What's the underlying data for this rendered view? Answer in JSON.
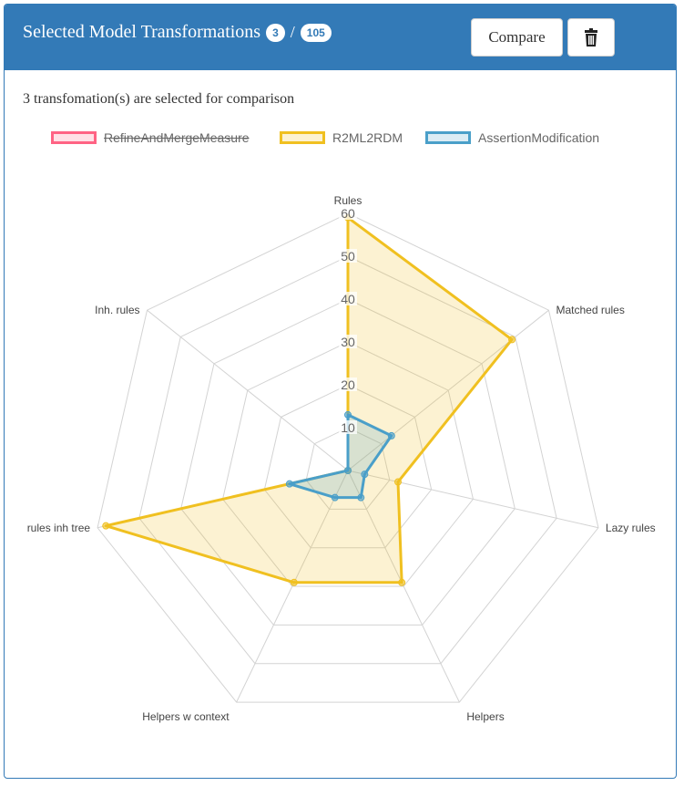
{
  "header": {
    "title": "Selected Model Transformations",
    "selected_count": "3",
    "separator": "/",
    "total_count": "105",
    "compare_label": "Compare",
    "trash_icon": "trash-icon"
  },
  "subtitle": "3 transfomation(s) are selected for comparison",
  "colors": {
    "header_bg": "#337ab7",
    "series_pink": "#ff6384",
    "series_yellow": "#f0c020",
    "series_blue": "#4a9fc9",
    "grid": "#d3d3d3"
  },
  "chart_data": {
    "type": "radar",
    "axes": [
      "Rules",
      "Matched rules",
      "Lazy rules",
      "Helpers",
      "Helpers w context",
      "rules inh tree",
      "Inh. rules"
    ],
    "r_ticks": [
      "10",
      "20",
      "30",
      "40",
      "50",
      "60"
    ],
    "rlim": [
      0,
      60
    ],
    "legend_position": "top",
    "series": [
      {
        "name": "RefineAndMergeMeasure",
        "hidden": true,
        "values": [
          0,
          0,
          0,
          0,
          0,
          0,
          0
        ],
        "color": "#ff6384",
        "fill": "rgba(255,99,132,0.2)"
      },
      {
        "name": "R2ML2RDM",
        "hidden": false,
        "values": [
          59,
          49,
          12,
          29,
          29,
          58,
          0
        ],
        "color": "#f0c020",
        "fill": "rgba(240,192,32,0.2)"
      },
      {
        "name": "AssertionModification",
        "hidden": false,
        "values": [
          13,
          13,
          4,
          7,
          7,
          14,
          0
        ],
        "color": "#4a9fc9",
        "fill": "rgba(74,159,201,0.2)"
      }
    ]
  }
}
